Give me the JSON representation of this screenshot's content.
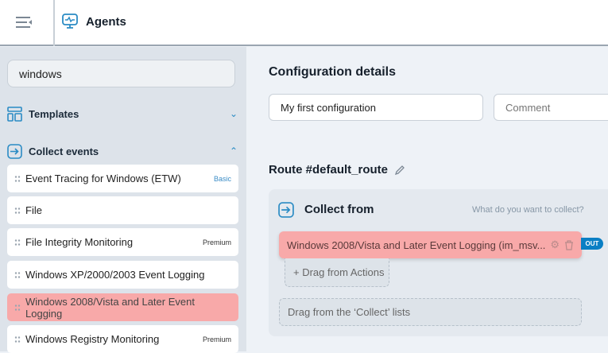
{
  "header": {
    "title": "Agents",
    "menu_icon": "collapse-menu-icon",
    "app_icon": "monitor-pulse-icon"
  },
  "sidebar": {
    "search": {
      "value": "windows"
    },
    "sections": [
      {
        "label": "Templates",
        "icon": "layout-icon",
        "expanded": false
      },
      {
        "label": "Collect events",
        "icon": "enter-icon",
        "expanded": true
      }
    ],
    "items": [
      {
        "label": "Event Tracing for Windows (ETW)",
        "badge": "Basic"
      },
      {
        "label": "File",
        "badge": ""
      },
      {
        "label": "File Integrity Monitoring",
        "badge": "Premium"
      },
      {
        "label": "Windows XP/2000/2003 Event Logging",
        "badge": ""
      },
      {
        "label": "Windows 2008/Vista and Later Event Logging",
        "badge": "",
        "selected": true
      },
      {
        "label": "Windows Registry Monitoring",
        "badge": "Premium"
      }
    ]
  },
  "main": {
    "config_title": "Configuration details",
    "name_value": "My first configuration",
    "comment_placeholder": "Comment",
    "route_title": "Route #default_route",
    "collect": {
      "title": "Collect from",
      "hint": "What do you want to collect?",
      "item": "Windows 2008/Vista and Later Event Logging (im_msv...",
      "out_badge": "OUT",
      "drag_actions": "+ Drag from Actions",
      "drag_collect": "Drag from the ‘Collect’ lists"
    }
  },
  "colors": {
    "accent": "#2a8bc4",
    "selected": "#f8a9a9",
    "out": "#0a7fc4"
  }
}
